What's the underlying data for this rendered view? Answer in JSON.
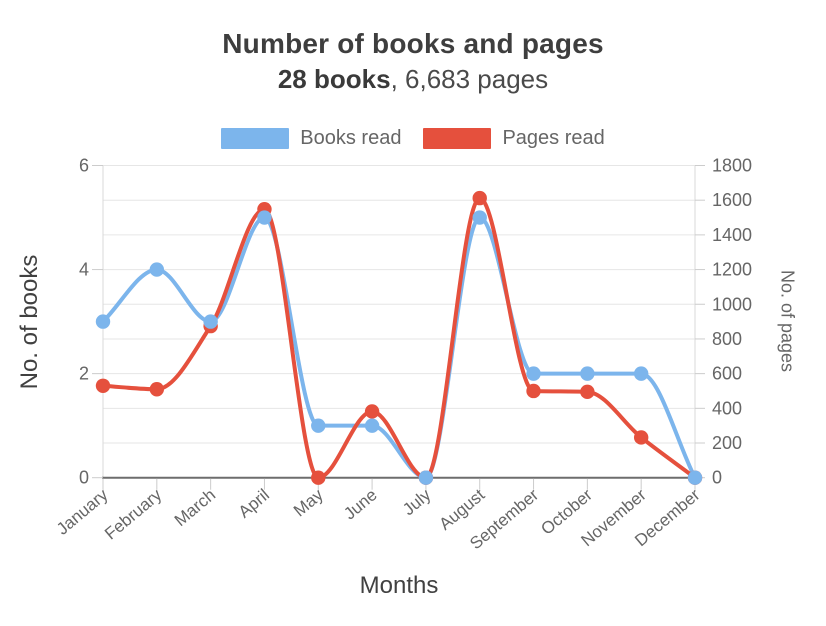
{
  "header": {
    "title": "Number of books and pages",
    "subtitle_bold": "28 books",
    "subtitle_rest": ", 6,683 pages"
  },
  "chart_data": {
    "type": "line",
    "categories": [
      "January",
      "February",
      "March",
      "April",
      "May",
      "June",
      "July",
      "August",
      "September",
      "October",
      "November",
      "December"
    ],
    "series": [
      {
        "name": "Books read",
        "axis": "left",
        "color": "#7cb5ec",
        "values": [
          3,
          4,
          3,
          5,
          1,
          1,
          0,
          5,
          2,
          2,
          2,
          0
        ]
      },
      {
        "name": "Pages read",
        "axis": "right",
        "color": "#e5503d",
        "values": [
          530,
          510,
          874,
          1548,
          0,
          382,
          0,
          1612,
          500,
          495,
          232,
          0
        ]
      }
    ],
    "totals": {
      "books": 28,
      "pages": "6,683"
    },
    "xlabel": "Months",
    "y_left": {
      "label": "No. of books",
      "min": 0,
      "max": 6,
      "ticks": [
        0,
        2,
        4,
        6
      ]
    },
    "y_right": {
      "label": "No. of pages",
      "min": 0,
      "max": 1800,
      "tick_step": 200
    },
    "grid": true,
    "legend_position": "top",
    "style": {
      "grid_color": "#e6e6e6",
      "axis_line_color": "#6d6d6d",
      "border_line_color": "#d9d9d9",
      "tick_color": "#cccccc",
      "tick_label_color": "#666666"
    }
  }
}
